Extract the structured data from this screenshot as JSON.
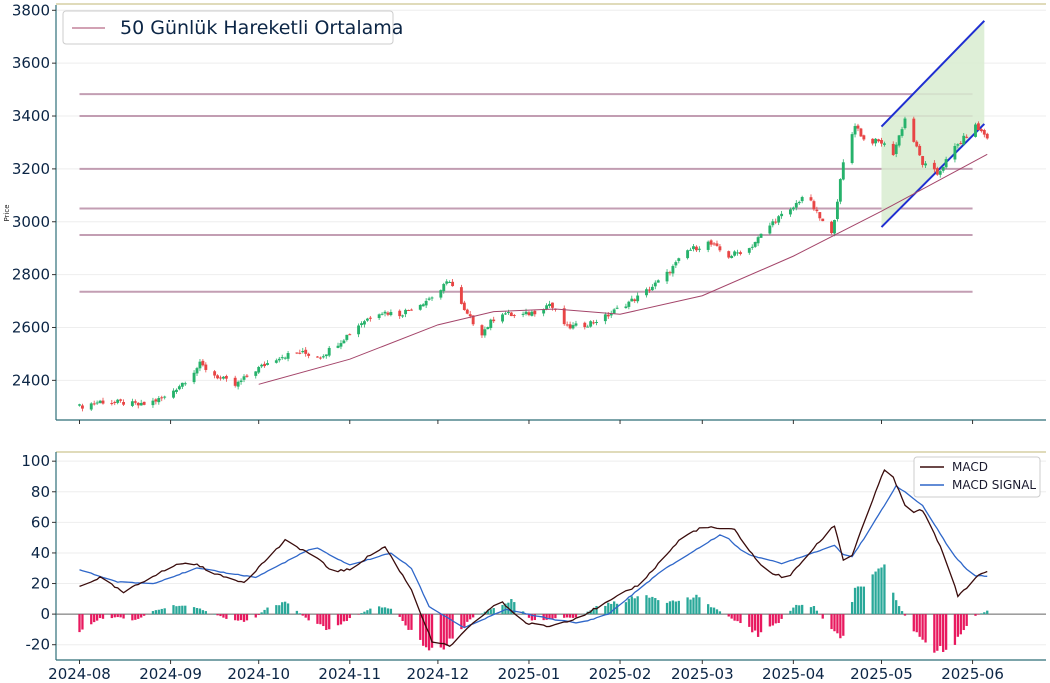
{
  "colors": {
    "up": "#26b26b",
    "down": "#e84545",
    "ma": "#a4456a",
    "hline": "#b98ea6",
    "channel": "#1f2fd1",
    "channel_fill": "#d8ecd0",
    "macd": "#3a0c0c",
    "signal": "#2f67c9",
    "hist_pos": "#2aa899",
    "hist_neg": "#e8195f",
    "axis": "#2e6e78",
    "topline": "#d6cfa3"
  },
  "chart_data": [
    {
      "type": "candlestick",
      "ylabel": "Price",
      "ylim": [
        2250,
        3820
      ],
      "y_ticks": [
        2400,
        2600,
        2800,
        3000,
        3200,
        3400,
        3600,
        3800
      ],
      "x_tick_labels": [
        "2024-08",
        "2024-09",
        "2024-10",
        "2024-11",
        "2024-12",
        "2025-01",
        "2025-02",
        "2025-03",
        "2025-04",
        "2025-05",
        "2025-06"
      ],
      "x_tick_dates": [
        "2024-08-01",
        "2024-09-01",
        "2024-10-01",
        "2024-11-01",
        "2024-12-01",
        "2025-01-01",
        "2025-02-01",
        "2025-03-01",
        "2025-04-01",
        "2025-05-01",
        "2025-06-01"
      ],
      "x_range": [
        "2024-07-24",
        "2025-06-26"
      ],
      "legend": "50 Günlük Hareketli Ortalama",
      "legend_position": "top-left",
      "horizontal_levels": [
        3483,
        3400,
        3200,
        3050,
        2950,
        2735
      ],
      "horizontal_levels_range": [
        "2024-08-01",
        "2025-06-01"
      ],
      "close_anchors": [
        [
          "2024-08-01",
          2300
        ],
        [
          "2024-08-08",
          2320
        ],
        [
          "2024-08-16",
          2315
        ],
        [
          "2024-08-22",
          2305
        ],
        [
          "2024-08-30",
          2335
        ],
        [
          "2024-09-06",
          2400
        ],
        [
          "2024-09-11",
          2460
        ],
        [
          "2024-09-16",
          2420
        ],
        [
          "2024-09-23",
          2380
        ],
        [
          "2024-09-30",
          2440
        ],
        [
          "2024-10-08",
          2490
        ],
        [
          "2024-10-15",
          2505
        ],
        [
          "2024-10-22",
          2490
        ],
        [
          "2024-10-29",
          2550
        ],
        [
          "2024-11-05",
          2620
        ],
        [
          "2024-11-11",
          2660
        ],
        [
          "2024-11-18",
          2650
        ],
        [
          "2024-11-25",
          2690
        ],
        [
          "2024-12-01",
          2730
        ],
        [
          "2024-12-05",
          2780
        ],
        [
          "2024-12-10",
          2660
        ],
        [
          "2024-12-16",
          2580
        ],
        [
          "2024-12-22",
          2660
        ],
        [
          "2024-12-28",
          2640
        ],
        [
          "2025-01-03",
          2660
        ],
        [
          "2025-01-08",
          2690
        ],
        [
          "2025-01-14",
          2600
        ],
        [
          "2025-01-20",
          2610
        ],
        [
          "2025-01-27",
          2640
        ],
        [
          "2025-02-03",
          2690
        ],
        [
          "2025-02-08",
          2720
        ],
        [
          "2025-02-16",
          2790
        ],
        [
          "2025-02-24",
          2890
        ],
        [
          "2025-03-03",
          2920
        ],
        [
          "2025-03-10",
          2870
        ],
        [
          "2025-03-17",
          2900
        ],
        [
          "2025-03-26",
          3010
        ],
        [
          "2025-03-31",
          3040
        ],
        [
          "2025-04-05",
          3110
        ],
        [
          "2025-04-09",
          3030
        ],
        [
          "2025-04-14",
          2950
        ],
        [
          "2025-04-18",
          3220
        ],
        [
          "2025-04-22",
          3370
        ],
        [
          "2025-04-25",
          3310
        ],
        [
          "2025-05-01",
          3300
        ],
        [
          "2025-05-05",
          3260
        ],
        [
          "2025-05-09",
          3390
        ],
        [
          "2025-05-15",
          3220
        ],
        [
          "2025-05-20",
          3180
        ],
        [
          "2025-05-26",
          3280
        ],
        [
          "2025-06-02",
          3360
        ],
        [
          "2025-06-06",
          3320
        ]
      ],
      "moving_average_50": [
        [
          "2024-10-01",
          2385
        ],
        [
          "2024-11-01",
          2480
        ],
        [
          "2024-12-01",
          2610
        ],
        [
          "2024-12-20",
          2660
        ],
        [
          "2025-01-10",
          2670
        ],
        [
          "2025-02-01",
          2650
        ],
        [
          "2025-03-01",
          2720
        ],
        [
          "2025-04-01",
          2870
        ],
        [
          "2025-05-01",
          3040
        ],
        [
          "2025-06-06",
          3255
        ]
      ],
      "channel": {
        "upper": [
          [
            "2025-05-01",
            3360
          ],
          [
            "2025-06-05",
            3760
          ]
        ],
        "lower": [
          [
            "2025-05-01",
            2980
          ],
          [
            "2025-06-05",
            3370
          ]
        ]
      }
    },
    {
      "type": "macd",
      "ylim": [
        -30,
        106
      ],
      "y_ticks": [
        -20,
        0,
        20,
        40,
        60,
        80,
        100
      ],
      "legend": [
        "MACD",
        "MACD SIGNAL"
      ],
      "legend_position": "top-right",
      "macd_anchors": [
        [
          "2024-08-01",
          18
        ],
        [
          "2024-08-08",
          24
        ],
        [
          "2024-08-16",
          14
        ],
        [
          "2024-08-26",
          25
        ],
        [
          "2024-09-04",
          33
        ],
        [
          "2024-09-09",
          33
        ],
        [
          "2024-09-18",
          25
        ],
        [
          "2024-09-26",
          21
        ],
        [
          "2024-10-10",
          48
        ],
        [
          "2024-10-20",
          38
        ],
        [
          "2024-10-26",
          28
        ],
        [
          "2024-11-01",
          29
        ],
        [
          "2024-11-09",
          40
        ],
        [
          "2024-11-13",
          44
        ],
        [
          "2024-11-22",
          16
        ],
        [
          "2024-11-29",
          -18
        ],
        [
          "2024-12-05",
          -21
        ],
        [
          "2024-12-12",
          -8
        ],
        [
          "2024-12-22",
          9
        ],
        [
          "2024-12-31",
          -6
        ],
        [
          "2025-01-08",
          -8
        ],
        [
          "2025-01-18",
          -2
        ],
        [
          "2025-01-28",
          8
        ],
        [
          "2025-02-08",
          20
        ],
        [
          "2025-02-22",
          50
        ],
        [
          "2025-03-01",
          57
        ],
        [
          "2025-03-12",
          55
        ],
        [
          "2025-03-22",
          29
        ],
        [
          "2025-03-30",
          23
        ],
        [
          "2025-04-06",
          39
        ],
        [
          "2025-04-15",
          58
        ],
        [
          "2025-04-19",
          28
        ],
        [
          "2025-04-26",
          65
        ],
        [
          "2025-05-03",
          99
        ],
        [
          "2025-05-10",
          66
        ],
        [
          "2025-05-15",
          68
        ],
        [
          "2025-05-22",
          40
        ],
        [
          "2025-05-27",
          12
        ],
        [
          "2025-06-03",
          25
        ],
        [
          "2025-06-10",
          32
        ],
        [
          "2025-06-16",
          27
        ]
      ],
      "signal_anchors": [
        [
          "2024-08-01",
          29
        ],
        [
          "2024-08-14",
          21
        ],
        [
          "2024-08-26",
          20
        ],
        [
          "2024-09-10",
          30
        ],
        [
          "2024-09-30",
          24
        ],
        [
          "2024-10-20",
          44
        ],
        [
          "2024-11-01",
          32
        ],
        [
          "2024-11-15",
          40
        ],
        [
          "2024-11-22",
          30
        ],
        [
          "2024-11-28",
          5
        ],
        [
          "2024-12-10",
          -9
        ],
        [
          "2024-12-24",
          3
        ],
        [
          "2025-01-08",
          -3
        ],
        [
          "2025-01-18",
          -6
        ],
        [
          "2025-01-28",
          0
        ],
        [
          "2025-02-15",
          28
        ],
        [
          "2025-03-08",
          53
        ],
        [
          "2025-03-15",
          40
        ],
        [
          "2025-03-28",
          33
        ],
        [
          "2025-04-15",
          45
        ],
        [
          "2025-04-20",
          35
        ],
        [
          "2025-04-26",
          52
        ],
        [
          "2025-05-06",
          84
        ],
        [
          "2025-05-15",
          71
        ],
        [
          "2025-05-25",
          40
        ],
        [
          "2025-06-01",
          25
        ],
        [
          "2025-06-10",
          25
        ],
        [
          "2025-06-16",
          28
        ]
      ],
      "histogram_anchors": [
        [
          "2024-08-01",
          -11
        ],
        [
          "2024-08-08",
          -3
        ],
        [
          "2024-08-14",
          -2
        ],
        [
          "2024-08-20",
          -4
        ],
        [
          "2024-08-26",
          2
        ],
        [
          "2024-09-03",
          6
        ],
        [
          "2024-09-12",
          3
        ],
        [
          "2024-09-20",
          -3
        ],
        [
          "2024-09-28",
          -5
        ],
        [
          "2024-10-04",
          4
        ],
        [
          "2024-10-10",
          8
        ],
        [
          "2024-10-18",
          -4
        ],
        [
          "2024-10-25",
          -10
        ],
        [
          "2024-11-02",
          -2
        ],
        [
          "2024-11-10",
          5
        ],
        [
          "2024-11-16",
          3
        ],
        [
          "2024-11-22",
          -12
        ],
        [
          "2024-11-30",
          -25
        ],
        [
          "2024-12-06",
          -16
        ],
        [
          "2024-12-12",
          -3
        ],
        [
          "2024-12-20",
          4
        ],
        [
          "2024-12-26",
          9
        ],
        [
          "2025-01-02",
          -4
        ],
        [
          "2025-01-10",
          -3
        ],
        [
          "2025-01-18",
          -2
        ],
        [
          "2025-01-24",
          5
        ],
        [
          "2025-02-03",
          9
        ],
        [
          "2025-02-10",
          13
        ],
        [
          "2025-02-18",
          8
        ],
        [
          "2025-02-27",
          11
        ],
        [
          "2025-03-06",
          3
        ],
        [
          "2025-03-14",
          -6
        ],
        [
          "2025-03-20",
          -13
        ],
        [
          "2025-03-26",
          -7
        ],
        [
          "2025-04-02",
          6
        ],
        [
          "2025-04-08",
          5
        ],
        [
          "2025-04-14",
          -11
        ],
        [
          "2025-04-18",
          -15
        ],
        [
          "2025-04-22",
          15
        ],
        [
          "2025-04-28",
          24
        ],
        [
          "2025-05-02",
          29
        ],
        [
          "2025-05-07",
          5
        ],
        [
          "2025-05-12",
          -10
        ],
        [
          "2025-05-18",
          -25
        ],
        [
          "2025-05-26",
          -19
        ],
        [
          "2025-06-01",
          -2
        ],
        [
          "2025-06-08",
          4
        ],
        [
          "2025-06-16",
          0
        ]
      ]
    }
  ]
}
